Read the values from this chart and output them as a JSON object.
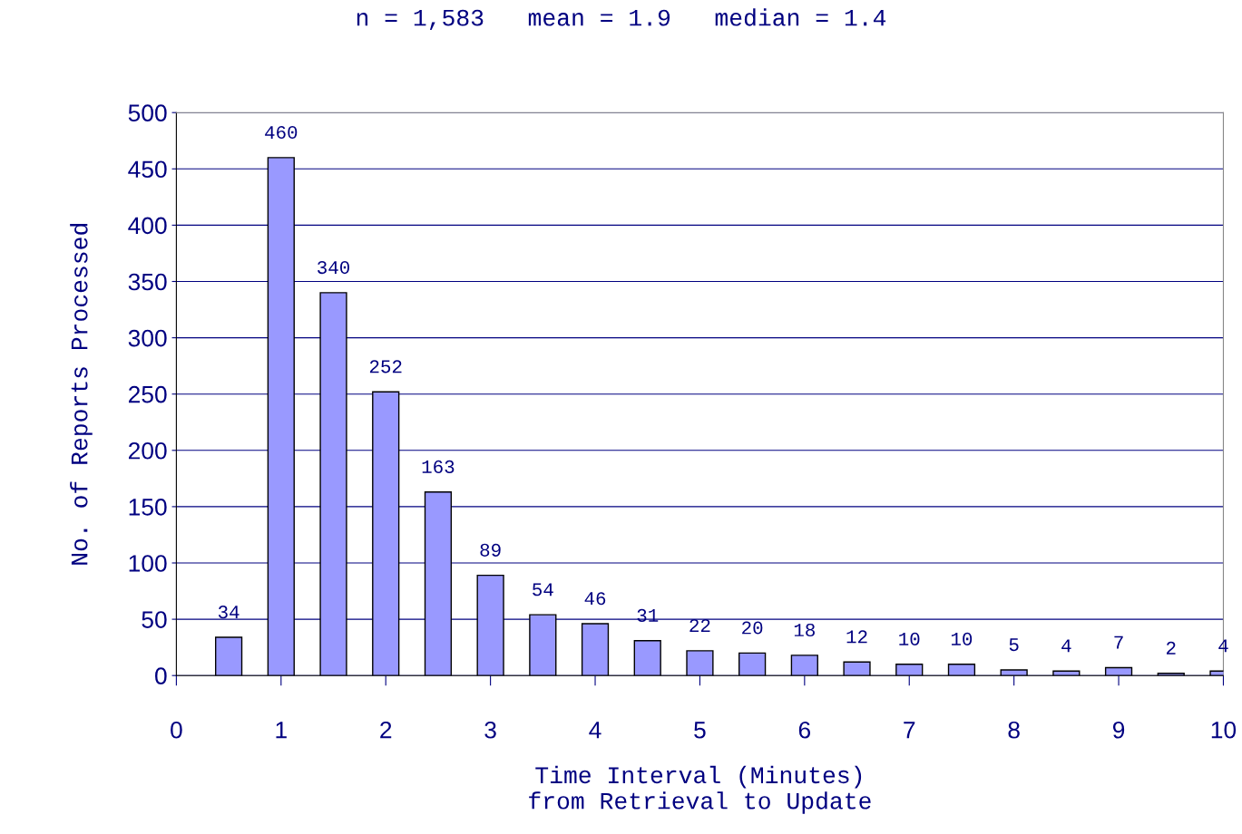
{
  "chart_data": {
    "type": "bar",
    "title": "n = 1,583   mean = 1.9   median = 1.4",
    "xlabel": "Time Interval (Minutes)\nfrom Retrieval to Update",
    "ylabel": "No. of Reports Processed",
    "x": [
      0.5,
      1,
      1.5,
      2,
      2.5,
      3,
      3.5,
      4,
      4.5,
      5,
      5.5,
      6,
      6.5,
      7,
      7.5,
      8,
      8.5,
      9,
      9.5,
      10
    ],
    "values": [
      34,
      460,
      340,
      252,
      163,
      89,
      54,
      46,
      31,
      22,
      20,
      18,
      12,
      10,
      10,
      5,
      4,
      7,
      2,
      4
    ],
    "color": "#9999ff",
    "xlim": [
      0,
      10
    ],
    "xticks": [
      0,
      1,
      2,
      3,
      4,
      5,
      6,
      7,
      8,
      9,
      10
    ],
    "ylim": [
      0,
      500
    ],
    "yticks": [
      0,
      50,
      100,
      150,
      200,
      250,
      300,
      350,
      400,
      450,
      500
    ],
    "grid": "y",
    "data_labels": true,
    "legend": false
  }
}
